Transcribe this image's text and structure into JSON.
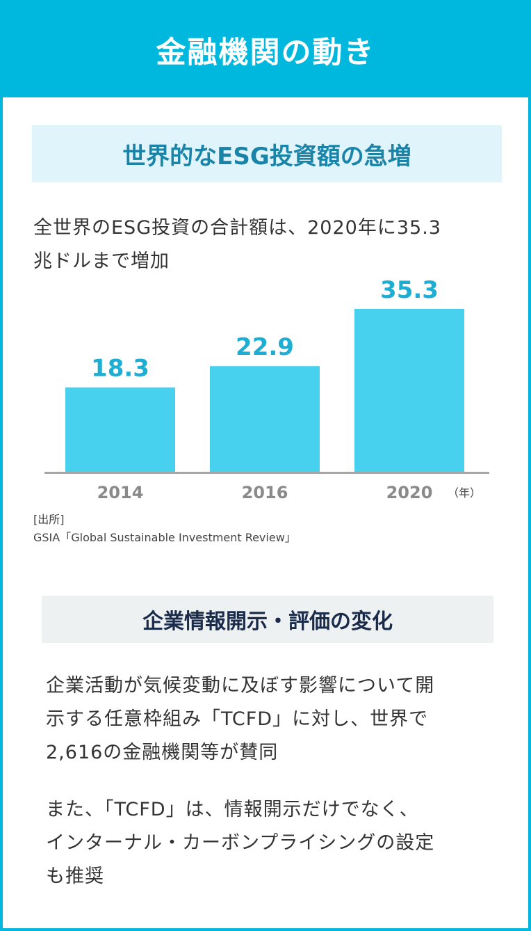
{
  "header": {
    "title": "金融機関の動き"
  },
  "section1": {
    "title": "世界的なESG投資額の急増",
    "lead_line1": "全世界のESG投資の合計額は、2020年に35.3",
    "lead_line2": "兆ドルまで増加"
  },
  "chart_data": {
    "type": "bar",
    "categories": [
      "2014",
      "2016",
      "2020"
    ],
    "values": [
      18.3,
      22.9,
      35.3
    ],
    "value_labels": [
      "18.3",
      "22.9",
      "35.3"
    ],
    "x_unit": "（年）",
    "ylim": [
      0,
      35.3
    ],
    "grid": false,
    "bar_color": "#48d1ef",
    "label_color": "#1eaed3",
    "tick_color": "#8a8a8a"
  },
  "source": {
    "label": "[出所]",
    "text": "GSIA「Global Sustainable Investment Review」"
  },
  "section2": {
    "title": "企業情報開示・評価の変化",
    "para1_line1": "企業活動が気候変動に及ぼす影響について開",
    "para1_line2": "示する任意枠組み「TCFD」に対し、世界で",
    "para1_line3": "2,616の金融機関等が賛同",
    "para2_line1": "また、「TCFD」は、情報開示だけでなく、",
    "para2_line2": "インターナル・カーボンプライシングの設定",
    "para2_line3": "も推奨"
  },
  "colors": {
    "accent": "#00b7de",
    "section_bg": "#dff5fb",
    "section_title": "#1a84a8",
    "section2_bg": "#eef1f2",
    "section2_title": "#1b2b4a"
  }
}
